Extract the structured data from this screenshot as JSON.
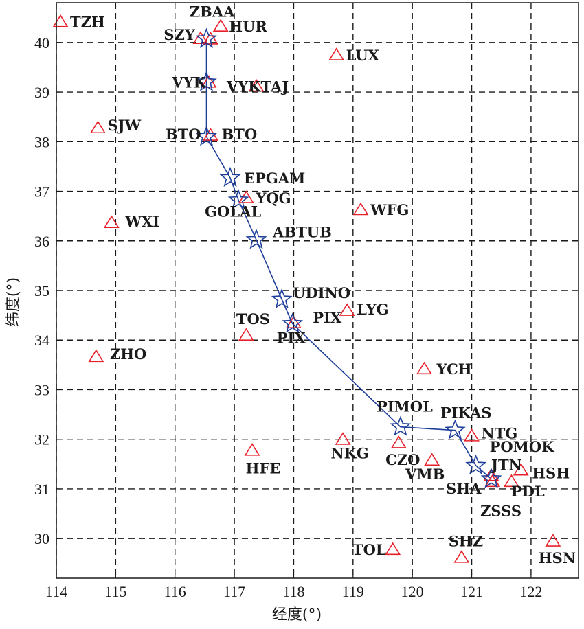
{
  "chart_data": {
    "type": "scatter",
    "xlabel": "经度(°)",
    "ylabel": "纬度(°)",
    "xlim": [
      114,
      122.8
    ],
    "ylim": [
      29.2,
      40.8
    ],
    "xticks": [
      114,
      115,
      116,
      117,
      118,
      119,
      120,
      121,
      122
    ],
    "yticks": [
      30,
      31,
      32,
      33,
      34,
      35,
      36,
      37,
      38,
      39,
      40
    ],
    "grid": true,
    "colors": {
      "triangle": "#e8202a",
      "route": "#1f3f9a",
      "text": "#1a1a1a"
    },
    "stations": [
      {
        "name": "TZH",
        "lon": 114.07,
        "lat": 40.42
      },
      {
        "name": "ZBAA",
        "lon": 116.6,
        "lat": 40.07
      },
      {
        "name": "HUR",
        "lon": 116.77,
        "lat": 40.33
      },
      {
        "name": "SZY",
        "lon": 116.43,
        "lat": 40.08
      },
      {
        "name": "LUX",
        "lon": 118.72,
        "lat": 39.75
      },
      {
        "name": "VYK",
        "lon": 116.57,
        "lat": 39.2
      },
      {
        "name": "VYKTAJ",
        "lon": 117.37,
        "lat": 39.12
      },
      {
        "name": "SJW",
        "lon": 114.7,
        "lat": 38.28
      },
      {
        "name": "BTO",
        "lon": 116.6,
        "lat": 38.13
      },
      {
        "name": "YQG",
        "lon": 117.2,
        "lat": 36.87
      },
      {
        "name": "WFG",
        "lon": 119.13,
        "lat": 36.63
      },
      {
        "name": "WXI",
        "lon": 114.93,
        "lat": 36.37
      },
      {
        "name": "LYG",
        "lon": 118.9,
        "lat": 34.6
      },
      {
        "name": "TOS",
        "lon": 117.2,
        "lat": 34.1
      },
      {
        "name": "PIX",
        "lon": 118.0,
        "lat": 34.35
      },
      {
        "name": "ZHO",
        "lon": 114.67,
        "lat": 33.67
      },
      {
        "name": "YCH",
        "lon": 120.2,
        "lat": 33.42
      },
      {
        "name": "NKG",
        "lon": 118.83,
        "lat": 32.0
      },
      {
        "name": "CZO",
        "lon": 119.77,
        "lat": 31.93
      },
      {
        "name": "NTG",
        "lon": 121.0,
        "lat": 32.07
      },
      {
        "name": "HFE",
        "lon": 117.3,
        "lat": 31.78
      },
      {
        "name": "VMB",
        "lon": 120.33,
        "lat": 31.58
      },
      {
        "name": "JTN",
        "lon": 121.33,
        "lat": 31.27
      },
      {
        "name": "SHA",
        "lon": 121.35,
        "lat": 31.15
      },
      {
        "name": "PDL",
        "lon": 121.67,
        "lat": 31.15
      },
      {
        "name": "HSH",
        "lon": 121.83,
        "lat": 31.38
      },
      {
        "name": "TOL",
        "lon": 119.67,
        "lat": 29.78
      },
      {
        "name": "SHZ",
        "lon": 120.83,
        "lat": 29.62
      },
      {
        "name": "HSN",
        "lon": 122.37,
        "lat": 29.95
      }
    ],
    "waypoints": [
      {
        "name": "ZBAA",
        "lon": 116.53,
        "lat": 40.07
      },
      {
        "name": "VYK",
        "lon": 116.53,
        "lat": 39.2
      },
      {
        "name": "BTO",
        "lon": 116.53,
        "lat": 38.1
      },
      {
        "name": "EPGAM",
        "lon": 116.93,
        "lat": 37.27
      },
      {
        "name": "GOLAL",
        "lon": 117.07,
        "lat": 36.82
      },
      {
        "name": "ABTUB",
        "lon": 117.37,
        "lat": 36.02
      },
      {
        "name": "UDINO",
        "lon": 117.8,
        "lat": 34.82
      },
      {
        "name": "PIX",
        "lon": 117.98,
        "lat": 34.33
      },
      {
        "name": "PIMOL",
        "lon": 119.8,
        "lat": 32.25
      },
      {
        "name": "PIKAS",
        "lon": 120.72,
        "lat": 32.18
      },
      {
        "name": "POMOK",
        "lon": 121.07,
        "lat": 31.47
      },
      {
        "name": "ZSSS",
        "lon": 121.33,
        "lat": 31.2
      }
    ],
    "labels": [
      {
        "text": "TZH",
        "lon": 114.07,
        "lat": 40.42,
        "dx": 14,
        "dy": 8,
        "anchor": "start"
      },
      {
        "text": "ZBAA",
        "lon": 116.6,
        "lat": 40.07,
        "dx": 2,
        "dy": -32,
        "anchor": "middle"
      },
      {
        "text": "HUR",
        "lon": 116.77,
        "lat": 40.33,
        "dx": 12,
        "dy": 8,
        "anchor": "start"
      },
      {
        "text": "SZY",
        "lon": 116.43,
        "lat": 40.08,
        "dx": -8,
        "dy": 2,
        "anchor": "end"
      },
      {
        "text": "LUX",
        "lon": 118.72,
        "lat": 39.75,
        "dx": 14,
        "dy": 8,
        "anchor": "start"
      },
      {
        "text": "VYK",
        "lon": 116.57,
        "lat": 39.2,
        "dx": -4,
        "dy": 8,
        "anchor": "end"
      },
      {
        "text": "VYKTAJ",
        "lon": 117.37,
        "lat": 39.12,
        "dx": 2,
        "dy": 8,
        "anchor": "middle"
      },
      {
        "text": "SJW",
        "lon": 114.7,
        "lat": 38.28,
        "dx": 14,
        "dy": 4,
        "anchor": "start"
      },
      {
        "text": "BTO",
        "lon": 116.53,
        "lat": 38.1,
        "dx": -8,
        "dy": 4,
        "anchor": "end"
      },
      {
        "text": "BTO",
        "lon": 116.6,
        "lat": 38.13,
        "dx": 16,
        "dy": 6,
        "anchor": "start"
      },
      {
        "text": "EPGAM",
        "lon": 116.93,
        "lat": 37.27,
        "dx": 20,
        "dy": 8,
        "anchor": "start"
      },
      {
        "text": "YQG",
        "lon": 117.2,
        "lat": 36.87,
        "dx": 14,
        "dy": 8,
        "anchor": "start"
      },
      {
        "text": "GOLAL",
        "lon": 117.07,
        "lat": 36.82,
        "dx": -8,
        "dy": 24,
        "anchor": "middle"
      },
      {
        "text": "WFG",
        "lon": 119.13,
        "lat": 36.63,
        "dx": 14,
        "dy": 8,
        "anchor": "start"
      },
      {
        "text": "WXI",
        "lon": 114.93,
        "lat": 36.37,
        "dx": 20,
        "dy": 6,
        "anchor": "start"
      },
      {
        "text": "ABTUB",
        "lon": 117.37,
        "lat": 36.02,
        "dx": 24,
        "dy": -4,
        "anchor": "start"
      },
      {
        "text": "UDINO",
        "lon": 117.8,
        "lat": 34.82,
        "dx": 16,
        "dy": -2,
        "anchor": "start"
      },
      {
        "text": "LYG",
        "lon": 118.9,
        "lat": 34.6,
        "dx": 14,
        "dy": 6,
        "anchor": "start"
      },
      {
        "text": "PIX",
        "lon": 118.9,
        "lat": 34.6,
        "dx": -8,
        "dy": 18,
        "anchor": "end"
      },
      {
        "text": "TOS",
        "lon": 117.2,
        "lat": 34.1,
        "dx": 10,
        "dy": -16,
        "anchor": "middle"
      },
      {
        "text": "PIX",
        "lon": 117.98,
        "lat": 34.33,
        "dx": -2,
        "dy": 28,
        "anchor": "middle"
      },
      {
        "text": "ZHO",
        "lon": 114.67,
        "lat": 33.67,
        "dx": 20,
        "dy": 4,
        "anchor": "start"
      },
      {
        "text": "YCH",
        "lon": 120.2,
        "lat": 33.42,
        "dx": 18,
        "dy": 8,
        "anchor": "start"
      },
      {
        "text": "PIMOL",
        "lon": 119.8,
        "lat": 32.25,
        "dx": 6,
        "dy": -22,
        "anchor": "middle"
      },
      {
        "text": "PIKAS",
        "lon": 120.72,
        "lat": 32.18,
        "dx": 16,
        "dy": -18,
        "anchor": "middle"
      },
      {
        "text": "NTG",
        "lon": 121.0,
        "lat": 32.07,
        "dx": 14,
        "dy": 4,
        "anchor": "start"
      },
      {
        "text": "NKG",
        "lon": 118.83,
        "lat": 32.0,
        "dx": 10,
        "dy": 28,
        "anchor": "middle"
      },
      {
        "text": "CZO",
        "lon": 119.77,
        "lat": 31.93,
        "dx": 6,
        "dy": 32,
        "anchor": "middle"
      },
      {
        "text": "HFE",
        "lon": 117.3,
        "lat": 31.78,
        "dx": 16,
        "dy": 34,
        "anchor": "middle"
      },
      {
        "text": "POMOK",
        "lon": 121.07,
        "lat": 31.47,
        "dx": 20,
        "dy": -20,
        "anchor": "start"
      },
      {
        "text": "JTN",
        "lon": 121.33,
        "lat": 31.27,
        "dx": 0,
        "dy": -8,
        "anchor": "start"
      },
      {
        "text": "VMB",
        "lon": 120.33,
        "lat": 31.58,
        "dx": -10,
        "dy": 28,
        "anchor": "middle"
      },
      {
        "text": "HSH",
        "lon": 121.83,
        "lat": 31.38,
        "dx": 16,
        "dy": 12,
        "anchor": "start"
      },
      {
        "text": "SHA",
        "lon": 121.35,
        "lat": 31.15,
        "dx": -42,
        "dy": 18,
        "anchor": "middle"
      },
      {
        "text": "PDL",
        "lon": 121.67,
        "lat": 31.15,
        "dx": 24,
        "dy": 22,
        "anchor": "middle"
      },
      {
        "text": "ZSSS",
        "lon": 121.33,
        "lat": 31.2,
        "dx": 14,
        "dy": 54,
        "anchor": "middle"
      },
      {
        "text": "TOL",
        "lon": 119.67,
        "lat": 29.78,
        "dx": -10,
        "dy": 8,
        "anchor": "end"
      },
      {
        "text": "SHZ",
        "lon": 120.83,
        "lat": 29.62,
        "dx": 6,
        "dy": -16,
        "anchor": "middle"
      },
      {
        "text": "HSN",
        "lon": 122.37,
        "lat": 29.95,
        "dx": 6,
        "dy": 32,
        "anchor": "middle"
      }
    ]
  }
}
